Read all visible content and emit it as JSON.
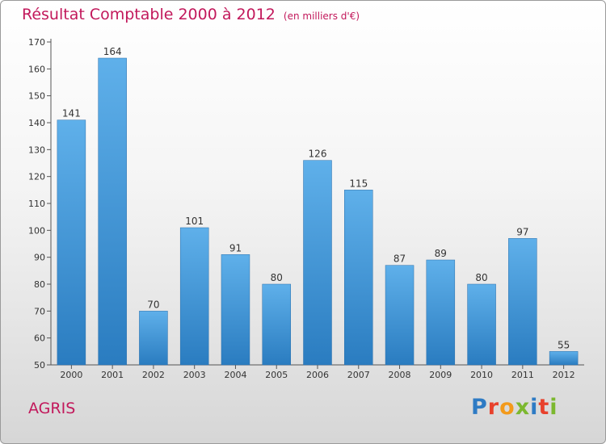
{
  "header": {
    "title": "Résultat Comptable 2000 à 2012",
    "subtitle": "(en milliers d'€)"
  },
  "footer": {
    "commune": "AGRIS",
    "logo_text": "Proxiti",
    "logo_colors": [
      "#2e7bc4",
      "#e8412c",
      "#f39a1b",
      "#7cb82f",
      "#2e7bc4",
      "#e8412c",
      "#7cb82f"
    ]
  },
  "colors": {
    "title": "#c2185b",
    "bar_top": "#5fb0ea",
    "bar_bottom": "#2a7cc0"
  },
  "chart_data": {
    "type": "bar",
    "categories": [
      "2000",
      "2001",
      "2002",
      "2003",
      "2004",
      "2005",
      "2006",
      "2007",
      "2008",
      "2009",
      "2010",
      "2011",
      "2012"
    ],
    "values": [
      141,
      164,
      70,
      101,
      91,
      80,
      126,
      115,
      87,
      89,
      80,
      97,
      55
    ],
    "title": "Résultat Comptable 2000 à 2012",
    "xlabel": "",
    "ylabel": "",
    "ylim": [
      50,
      170
    ],
    "yticks": [
      50,
      60,
      70,
      80,
      90,
      100,
      110,
      120,
      130,
      140,
      150,
      160,
      170
    ],
    "grid": false,
    "legend": "none"
  }
}
